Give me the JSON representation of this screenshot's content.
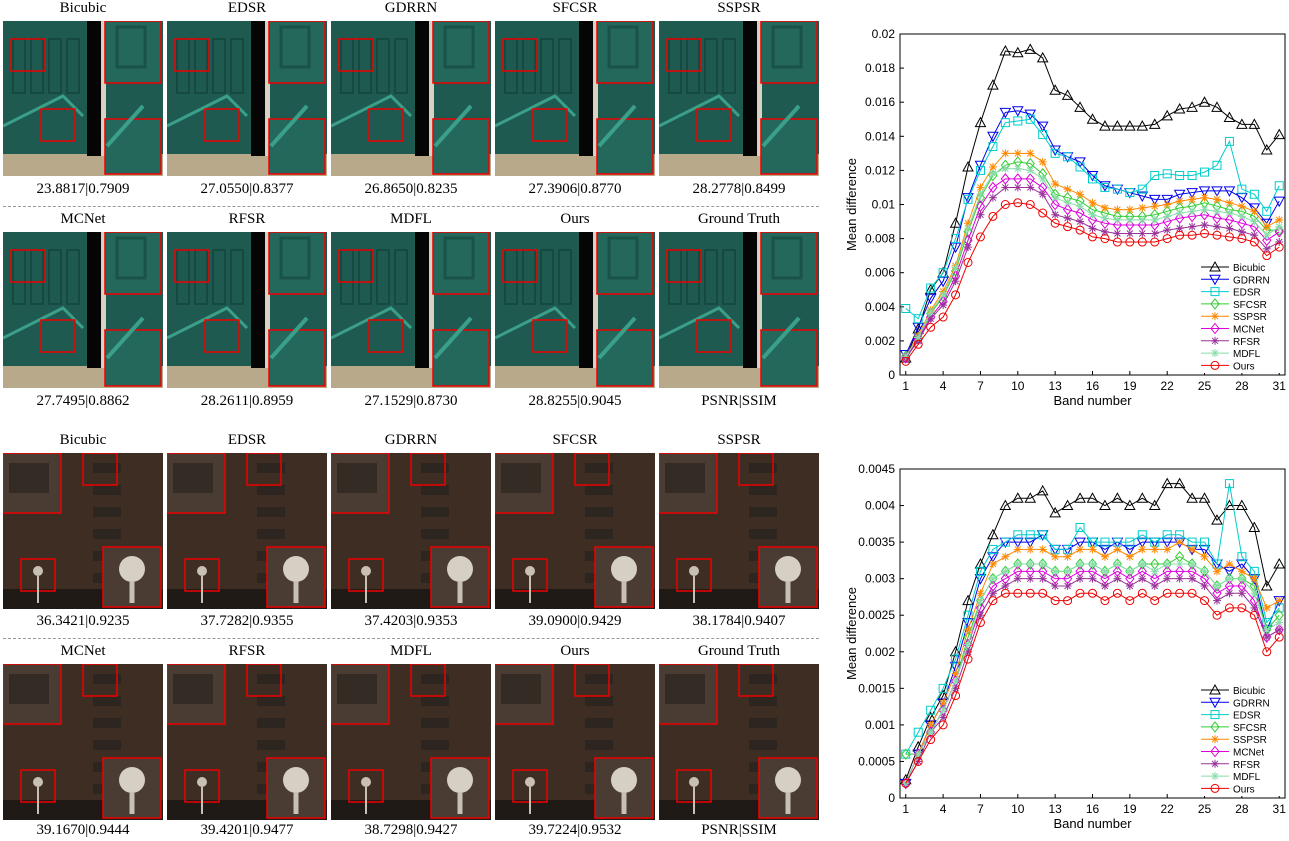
{
  "figure_a": {
    "row1_titles": [
      "Bicubic",
      "EDSR",
      "GDRRN",
      "SFCSR",
      "SSPSR"
    ],
    "row1_metrics": [
      "23.8817|0.7909",
      "27.0550|0.8377",
      "26.8650|0.8235",
      "27.3906|0.8770",
      "28.2778|0.8499"
    ],
    "row2_titles": [
      "MCNet",
      "RFSR",
      "MDFL",
      "Ours",
      "Ground Truth"
    ],
    "row2_metrics": [
      "27.7495|0.8862",
      "28.2611|0.8959",
      "27.1529|0.8730",
      "28.8255|0.9045",
      "PSNR|SSIM"
    ]
  },
  "figure_b": {
    "row1_titles": [
      "Bicubic",
      "EDSR",
      "GDRRN",
      "SFCSR",
      "SSPSR"
    ],
    "row1_metrics": [
      "36.3421|0.9235",
      "37.7282|0.9355",
      "37.4203|0.9353",
      "39.0900|0.9429",
      "38.1784|0.9407"
    ],
    "row2_titles": [
      "MCNet",
      "RFSR",
      "MDFL",
      "Ours",
      "Ground Truth"
    ],
    "row2_metrics": [
      "39.1670|0.9444",
      "39.4201|0.9477",
      "38.7298|0.9427",
      "39.7224|0.9532",
      "PSNR|SSIM"
    ]
  },
  "chart_data": [
    {
      "type": "line",
      "xlabel": "Band number",
      "ylabel": "Mean difference",
      "xlim": [
        1,
        31
      ],
      "ylim": [
        0,
        0.02
      ],
      "xticks": [
        1,
        4,
        7,
        10,
        13,
        16,
        19,
        22,
        25,
        28,
        31
      ],
      "yticks": [
        0,
        0.002,
        0.004,
        0.006,
        0.008,
        0.01,
        0.012,
        0.014,
        0.016,
        0.018,
        0.02
      ],
      "ytick_labels": [
        "0",
        "0.002",
        "0.004",
        "0.006",
        "0.008",
        "0.01",
        "0.012",
        "0.014",
        "0.016",
        "0.018",
        "0.02"
      ],
      "legend_position": "bottom-right",
      "x": [
        1,
        2,
        3,
        4,
        5,
        6,
        7,
        8,
        9,
        10,
        11,
        12,
        13,
        14,
        15,
        16,
        17,
        18,
        19,
        20,
        21,
        22,
        23,
        24,
        25,
        26,
        27,
        28,
        29,
        30,
        31
      ],
      "series": [
        {
          "name": "Bicubic",
          "color": "#000000",
          "marker": "triangle-up",
          "values": [
            0.001,
            0.0027,
            0.005,
            0.006,
            0.0089,
            0.0122,
            0.0148,
            0.017,
            0.019,
            0.0189,
            0.0191,
            0.0186,
            0.0167,
            0.0164,
            0.0157,
            0.015,
            0.0146,
            0.0146,
            0.0146,
            0.0146,
            0.0147,
            0.0152,
            0.0156,
            0.0157,
            0.016,
            0.0157,
            0.0151,
            0.0147,
            0.0147,
            0.0132,
            0.0141
          ]
        },
        {
          "name": "GDRRN",
          "color": "#0000ee",
          "marker": "triangle-down",
          "values": [
            0.0012,
            0.0028,
            0.0045,
            0.0055,
            0.0075,
            0.0104,
            0.0123,
            0.014,
            0.0154,
            0.0155,
            0.0153,
            0.0146,
            0.0132,
            0.0128,
            0.0125,
            0.0117,
            0.0111,
            0.0109,
            0.0107,
            0.0105,
            0.0103,
            0.0103,
            0.0106,
            0.0107,
            0.0108,
            0.0108,
            0.0108,
            0.0104,
            0.0098,
            0.0089,
            0.0102
          ]
        },
        {
          "name": "EDSR",
          "color": "#00cccc",
          "marker": "square",
          "values": [
            0.0039,
            0.0033,
            0.0051,
            0.006,
            0.008,
            0.0103,
            0.012,
            0.0134,
            0.0148,
            0.0149,
            0.015,
            0.0141,
            0.013,
            0.0128,
            0.0122,
            0.0115,
            0.011,
            0.0109,
            0.0107,
            0.0109,
            0.0117,
            0.0118,
            0.0117,
            0.0117,
            0.0119,
            0.0123,
            0.0137,
            0.0109,
            0.0106,
            0.0096,
            0.0111
          ]
        },
        {
          "name": "SFCSR",
          "color": "#33cc33",
          "marker": "diamond",
          "values": [
            0.0011,
            0.0022,
            0.0036,
            0.0046,
            0.0061,
            0.0084,
            0.0104,
            0.0117,
            0.0123,
            0.0125,
            0.0124,
            0.0118,
            0.0106,
            0.0104,
            0.0102,
            0.0097,
            0.0095,
            0.0093,
            0.0093,
            0.0093,
            0.0094,
            0.0096,
            0.0098,
            0.0099,
            0.0101,
            0.0099,
            0.0097,
            0.0096,
            0.0093,
            0.0085,
            0.0085
          ]
        },
        {
          "name": "SSPSR",
          "color": "#ff8800",
          "marker": "star",
          "values": [
            0.0011,
            0.0023,
            0.0038,
            0.0049,
            0.0064,
            0.0089,
            0.011,
            0.0122,
            0.013,
            0.013,
            0.013,
            0.0125,
            0.0112,
            0.0109,
            0.0106,
            0.0101,
            0.0098,
            0.0097,
            0.0097,
            0.0098,
            0.0099,
            0.01,
            0.0102,
            0.0103,
            0.0104,
            0.0103,
            0.0101,
            0.0099,
            0.0096,
            0.0087,
            0.0091
          ]
        },
        {
          "name": "MCNet",
          "color": "#dd00dd",
          "marker": "diamond",
          "values": [
            0.001,
            0.0021,
            0.0034,
            0.0043,
            0.0058,
            0.0079,
            0.0099,
            0.011,
            0.0115,
            0.0115,
            0.0115,
            0.011,
            0.01,
            0.0097,
            0.0095,
            0.0091,
            0.0089,
            0.0088,
            0.0088,
            0.0088,
            0.0088,
            0.009,
            0.0092,
            0.0093,
            0.0094,
            0.0092,
            0.0091,
            0.0089,
            0.0087,
            0.0079,
            0.0084
          ]
        },
        {
          "name": "RFSR",
          "color": "#993399",
          "marker": "star",
          "values": [
            0.001,
            0.002,
            0.0033,
            0.0041,
            0.0055,
            0.0075,
            0.0094,
            0.0104,
            0.011,
            0.011,
            0.011,
            0.0106,
            0.0094,
            0.0092,
            0.009,
            0.0086,
            0.0084,
            0.0083,
            0.0083,
            0.0083,
            0.0083,
            0.0085,
            0.0086,
            0.0087,
            0.0088,
            0.0087,
            0.0086,
            0.0084,
            0.0082,
            0.0074,
            0.0078
          ]
        },
        {
          "name": "MDFL",
          "color": "#88ddaa",
          "marker": "star",
          "values": [
            0.0011,
            0.0022,
            0.0037,
            0.0047,
            0.0063,
            0.0086,
            0.0106,
            0.0118,
            0.0121,
            0.0121,
            0.012,
            0.0115,
            0.0104,
            0.0101,
            0.0099,
            0.0094,
            0.0092,
            0.0091,
            0.0091,
            0.0091,
            0.0091,
            0.0093,
            0.0095,
            0.0096,
            0.0097,
            0.0096,
            0.0095,
            0.0093,
            0.009,
            0.0082,
            0.0087
          ]
        },
        {
          "name": "Ours",
          "color": "#ee0000",
          "marker": "circle",
          "values": [
            0.0008,
            0.0018,
            0.0028,
            0.0034,
            0.0047,
            0.0066,
            0.0081,
            0.0093,
            0.01,
            0.0101,
            0.01,
            0.0095,
            0.0089,
            0.0087,
            0.0085,
            0.0081,
            0.008,
            0.0078,
            0.0078,
            0.0078,
            0.0078,
            0.008,
            0.0082,
            0.0082,
            0.0083,
            0.0082,
            0.0081,
            0.008,
            0.0078,
            0.007,
            0.0075
          ]
        }
      ]
    },
    {
      "type": "line",
      "xlabel": "Band number",
      "ylabel": "Mean difference",
      "xlim": [
        1,
        31
      ],
      "ylim": [
        0,
        0.0045
      ],
      "xticks": [
        1,
        4,
        7,
        10,
        13,
        16,
        19,
        22,
        25,
        28,
        31
      ],
      "yticks": [
        0,
        0.0005,
        0.001,
        0.0015,
        0.002,
        0.0025,
        0.003,
        0.0035,
        0.004,
        0.0045
      ],
      "ytick_labels": [
        "0",
        "0.0005",
        "0.001",
        "0.0015",
        "0.002",
        "0.0025",
        "0.003",
        "0.0035",
        "0.004",
        "0.0045"
      ],
      "legend_position": "bottom-right",
      "x": [
        1,
        2,
        3,
        4,
        5,
        6,
        7,
        8,
        9,
        10,
        11,
        12,
        13,
        14,
        15,
        16,
        17,
        18,
        19,
        20,
        21,
        22,
        23,
        24,
        25,
        26,
        27,
        28,
        29,
        30,
        31
      ],
      "series": [
        {
          "name": "Bicubic",
          "color": "#000000",
          "marker": "triangle-up",
          "values": [
            0.00025,
            0.0007,
            0.0011,
            0.0014,
            0.002,
            0.0027,
            0.0032,
            0.0036,
            0.004,
            0.0041,
            0.0041,
            0.0042,
            0.0039,
            0.004,
            0.0041,
            0.0041,
            0.004,
            0.0041,
            0.004,
            0.0041,
            0.004,
            0.0043,
            0.0043,
            0.0041,
            0.0041,
            0.0038,
            0.004,
            0.004,
            0.0037,
            0.0029,
            0.0032
          ]
        },
        {
          "name": "GDRRN",
          "color": "#0000ee",
          "marker": "triangle-down",
          "values": [
            0.0002,
            0.0006,
            0.001,
            0.0013,
            0.0018,
            0.0024,
            0.003,
            0.0033,
            0.0035,
            0.0035,
            0.0035,
            0.0036,
            0.0034,
            0.0034,
            0.0035,
            0.0035,
            0.0034,
            0.0035,
            0.0034,
            0.0035,
            0.0035,
            0.0035,
            0.0035,
            0.0034,
            0.0034,
            0.0032,
            0.0031,
            0.0032,
            0.003,
            0.0023,
            0.0027
          ]
        },
        {
          "name": "EDSR",
          "color": "#00cccc",
          "marker": "square",
          "values": [
            0.0006,
            0.0009,
            0.0012,
            0.0015,
            0.0019,
            0.0025,
            0.0031,
            0.0034,
            0.0035,
            0.0036,
            0.0036,
            0.0036,
            0.0034,
            0.0034,
            0.0037,
            0.0035,
            0.0035,
            0.0035,
            0.0035,
            0.0036,
            0.0035,
            0.0036,
            0.0036,
            0.0035,
            0.0035,
            0.0032,
            0.0043,
            0.0033,
            0.0031,
            0.0024,
            0.0026
          ]
        },
        {
          "name": "SFCSR",
          "color": "#33cc33",
          "marker": "diamond",
          "values": [
            0.0006,
            0.0006,
            0.0009,
            0.0012,
            0.0016,
            0.0022,
            0.0027,
            0.003,
            0.0031,
            0.0032,
            0.0032,
            0.0032,
            0.0031,
            0.0031,
            0.0032,
            0.0032,
            0.0031,
            0.0032,
            0.0031,
            0.0032,
            0.0032,
            0.0032,
            0.0033,
            0.0032,
            0.0031,
            0.0029,
            0.003,
            0.003,
            0.0029,
            0.0023,
            0.0025
          ]
        },
        {
          "name": "SSPSR",
          "color": "#ff8800",
          "marker": "star",
          "values": [
            0.0002,
            0.0006,
            0.001,
            0.0013,
            0.0017,
            0.0023,
            0.0028,
            0.0032,
            0.0033,
            0.0034,
            0.0034,
            0.0034,
            0.0033,
            0.0033,
            0.0034,
            0.0034,
            0.0033,
            0.0034,
            0.0033,
            0.0034,
            0.0034,
            0.0034,
            0.0035,
            0.0034,
            0.0033,
            0.0031,
            0.0032,
            0.0031,
            0.003,
            0.0026,
            0.0027
          ]
        },
        {
          "name": "MCNet",
          "color": "#dd00dd",
          "marker": "diamond",
          "values": [
            0.0002,
            0.0006,
            0.0009,
            0.0012,
            0.0016,
            0.0021,
            0.0026,
            0.0029,
            0.003,
            0.0031,
            0.0031,
            0.0031,
            0.003,
            0.003,
            0.0031,
            0.0031,
            0.003,
            0.0031,
            0.003,
            0.0031,
            0.003,
            0.0031,
            0.0031,
            0.0031,
            0.003,
            0.0028,
            0.0029,
            0.0029,
            0.0027,
            0.0022,
            0.0023
          ]
        },
        {
          "name": "RFSR",
          "color": "#993399",
          "marker": "star",
          "values": [
            0.0002,
            0.0005,
            0.0009,
            0.0011,
            0.0015,
            0.002,
            0.0025,
            0.0028,
            0.0029,
            0.003,
            0.003,
            0.003,
            0.0029,
            0.0029,
            0.003,
            0.003,
            0.0029,
            0.003,
            0.0029,
            0.003,
            0.0029,
            0.003,
            0.003,
            0.003,
            0.0029,
            0.0027,
            0.0028,
            0.0028,
            0.0026,
            0.0022,
            0.0023
          ]
        },
        {
          "name": "MDFL",
          "color": "#88ddaa",
          "marker": "star",
          "values": [
            0.0002,
            0.0006,
            0.0009,
            0.0012,
            0.0016,
            0.0021,
            0.0027,
            0.003,
            0.0031,
            0.0032,
            0.0032,
            0.0032,
            0.0031,
            0.0031,
            0.0032,
            0.0032,
            0.0031,
            0.0032,
            0.0031,
            0.0032,
            0.0031,
            0.0032,
            0.0032,
            0.0032,
            0.0031,
            0.0029,
            0.003,
            0.003,
            0.0028,
            0.0023,
            0.0024
          ]
        },
        {
          "name": "Ours",
          "color": "#ee0000",
          "marker": "circle",
          "values": [
            0.0002,
            0.0005,
            0.0008,
            0.001,
            0.0014,
            0.0019,
            0.0024,
            0.0027,
            0.0028,
            0.0028,
            0.0028,
            0.0028,
            0.0027,
            0.0027,
            0.0028,
            0.0028,
            0.0027,
            0.0028,
            0.0027,
            0.0028,
            0.0027,
            0.0028,
            0.0028,
            0.0028,
            0.0027,
            0.0025,
            0.0026,
            0.0026,
            0.0025,
            0.002,
            0.0022
          ]
        }
      ]
    }
  ]
}
